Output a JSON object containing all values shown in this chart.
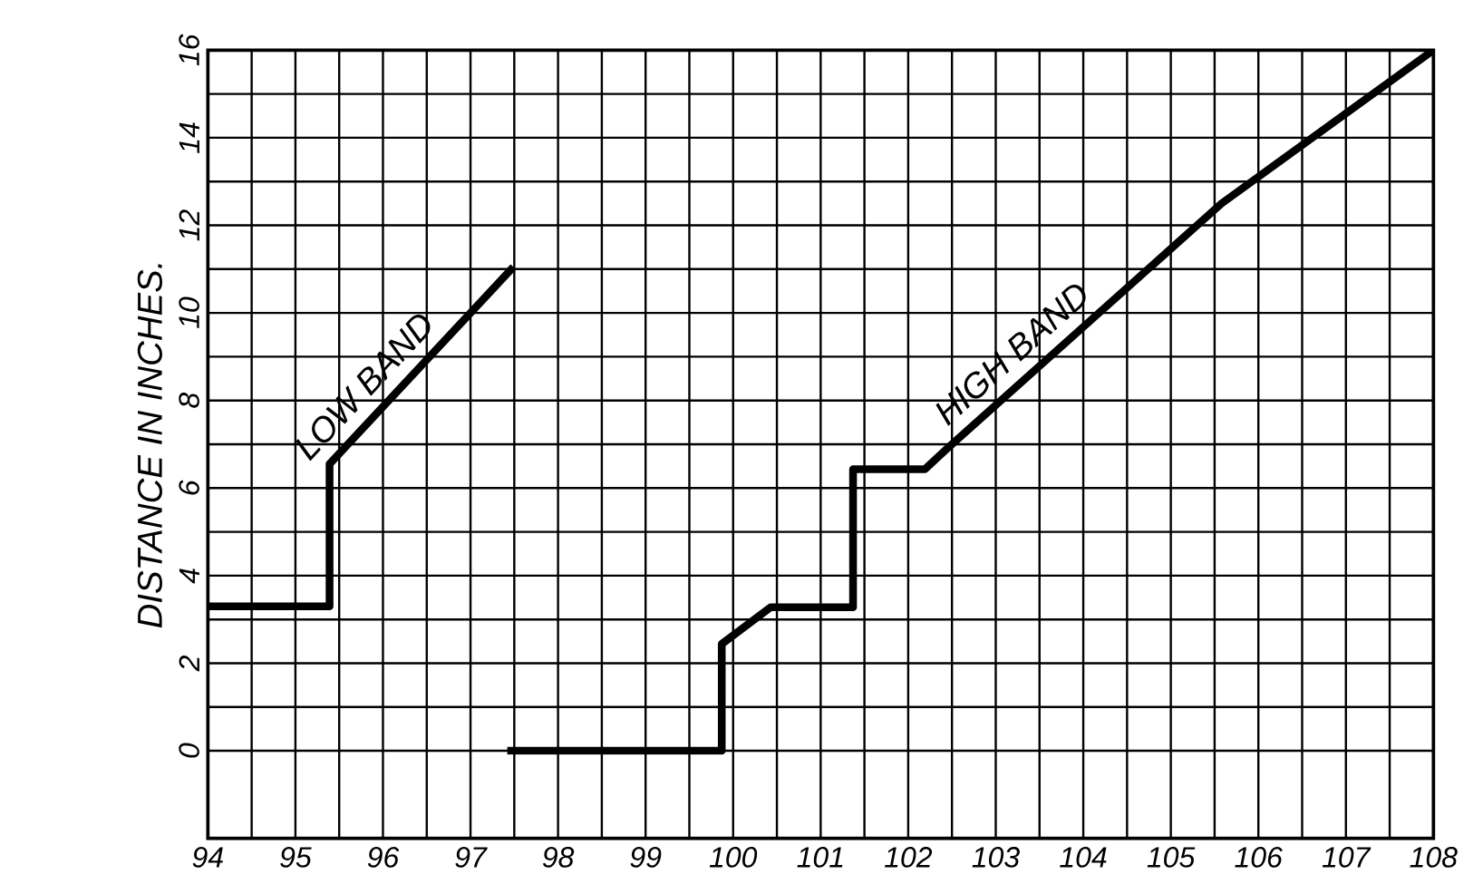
{
  "chart_data": {
    "type": "line",
    "ylabel": "DISTANCE IN INCHES.",
    "xlim": [
      94,
      108
    ],
    "ylim": [
      -2,
      16
    ],
    "xticks": [
      94,
      95,
      96,
      97,
      98,
      99,
      100,
      101,
      102,
      103,
      104,
      105,
      106,
      107,
      108
    ],
    "yticks": [
      0,
      2,
      4,
      6,
      8,
      10,
      12,
      14,
      16
    ],
    "grid": true,
    "marker": "none",
    "line_style": "solid",
    "series": [
      {
        "name": "LOW BAND",
        "color": "#000000",
        "x": [
          94,
          95.39,
          95.39,
          97.49
        ],
        "values": [
          3.3,
          3.3,
          6.55,
          11.05
        ]
      },
      {
        "name": "HIGH BAND",
        "color": "#000000",
        "x": [
          97.42,
          99.87,
          99.87,
          100.43,
          101.37,
          101.37,
          102.19,
          102.46,
          105.58,
          108
        ],
        "values": [
          0,
          0,
          2.44,
          3.28,
          3.28,
          6.43,
          6.43,
          6.93,
          12.5,
          16
        ]
      }
    ]
  }
}
